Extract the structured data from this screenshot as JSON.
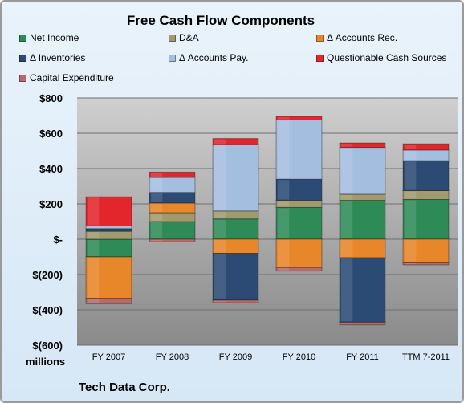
{
  "chart_data": {
    "type": "bar",
    "stacked": true,
    "title": "Free Cash Flow Components",
    "units_label": "millions",
    "company_label": "Tech Data Corp.",
    "categories": [
      "FY 2007",
      "FY 2008",
      "FY 2009",
      "FY 2010",
      "FY 2011",
      "TTM 7-2011"
    ],
    "ylim": [
      -600,
      800
    ],
    "yticks": [
      800,
      600,
      400,
      200,
      0,
      -200,
      -400,
      -600
    ],
    "ytick_labels": [
      "$800",
      "$600",
      "$400",
      "$200",
      "$-",
      "$(200)",
      "$(400)",
      "$(600)"
    ],
    "grid": true,
    "legend_position": "top",
    "series": [
      {
        "name": "Net Income",
        "color": "#2e8b57",
        "values": [
          -100,
          100,
          115,
          180,
          220,
          225
        ]
      },
      {
        "name": "D&A",
        "color": "#a09a6e",
        "values": [
          45,
          50,
          45,
          40,
          35,
          50
        ]
      },
      {
        "name": "Δ Accounts Rec.",
        "color": "#e8862a",
        "values": [
          -235,
          55,
          -80,
          -160,
          -105,
          -130
        ]
      },
      {
        "name": "Δ Inventories",
        "color": "#2b4a74",
        "values": [
          15,
          60,
          -265,
          120,
          -365,
          170
        ]
      },
      {
        "name": "Δ Accounts Pay.",
        "color": "#a4bee0",
        "values": [
          15,
          85,
          375,
          335,
          265,
          60
        ]
      },
      {
        "name": "Questionable Cash Sources",
        "color": "#e3262c",
        "values": [
          165,
          30,
          35,
          20,
          25,
          35
        ]
      },
      {
        "name": "Capital Expenditure",
        "color": "#b86a6a",
        "values": [
          -30,
          -15,
          -15,
          -20,
          -15,
          -15
        ]
      }
    ]
  }
}
